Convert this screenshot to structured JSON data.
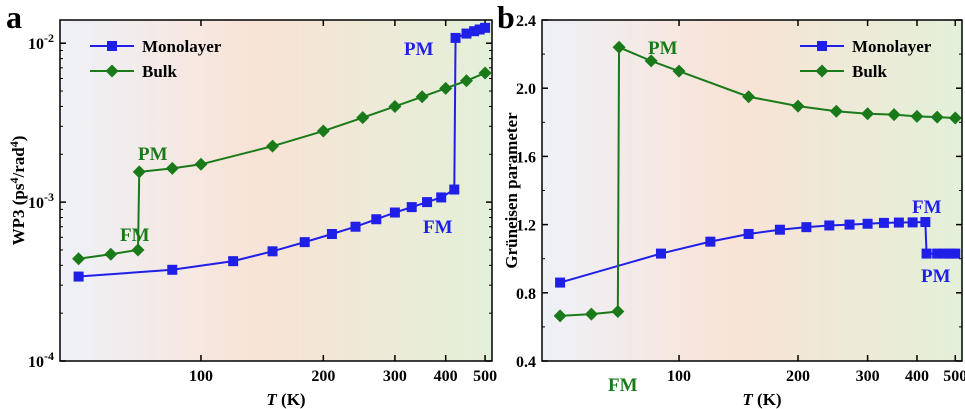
{
  "figure": {
    "panels": [
      {
        "letter": "a"
      },
      {
        "letter": "b"
      }
    ]
  },
  "chart_data": [
    {
      "type": "line",
      "panel": "a",
      "xlabel": "T (K)",
      "ylabel": "WP3 (ps4/rad4)",
      "xscale": "log",
      "yscale": "log",
      "xlim": [
        45,
        520
      ],
      "ylim": [
        0.0001,
        0.014
      ],
      "xticks": [
        100,
        200,
        300,
        400,
        500
      ],
      "xtick_labels": [
        "100",
        "200",
        "300",
        "400",
        "500"
      ],
      "yticks": [
        0.0001,
        0.001,
        0.01
      ],
      "ytick_labels": [
        "10-4",
        "10-3",
        "10-2"
      ],
      "legend_position": "top-left",
      "background_gradient": [
        "#eef1f8",
        "#f9e3d6",
        "#e3f0d9"
      ],
      "series": [
        {
          "name": "Monolayer",
          "color": "#1f1fe8",
          "marker": "square",
          "x": [
            50,
            85,
            120,
            150,
            180,
            210,
            240,
            270,
            300,
            330,
            360,
            390,
            420,
            423,
            450,
            470,
            485,
            500
          ],
          "y": [
            0.00034,
            0.000375,
            0.000425,
            0.00049,
            0.00056,
            0.00063,
            0.0007,
            0.00078,
            0.00086,
            0.00093,
            0.001,
            0.00107,
            0.0012,
            0.0108,
            0.0115,
            0.0119,
            0.0122,
            0.0125
          ]
        },
        {
          "name": "Bulk",
          "color": "#1a7a1a",
          "marker": "diamond",
          "x": [
            50,
            60,
            70,
            70.5,
            85,
            100,
            150,
            200,
            250,
            300,
            350,
            400,
            450,
            500
          ],
          "y": [
            0.00044,
            0.00047,
            0.0005,
            0.00155,
            0.00163,
            0.00173,
            0.00225,
            0.0028,
            0.0034,
            0.004,
            0.0046,
            0.0052,
            0.0058,
            0.0065
          ]
        }
      ],
      "annotations": [
        {
          "text": "PM",
          "color": "#1a7a1a"
        },
        {
          "text": "FM",
          "color": "#1a7a1a"
        },
        {
          "text": "PM",
          "color": "#1f1fe8"
        },
        {
          "text": "FM",
          "color": "#1f1fe8"
        }
      ]
    },
    {
      "type": "line",
      "panel": "b",
      "xlabel": "T (K)",
      "ylabel": "Grüneisen parameter",
      "xscale": "log",
      "yscale": "linear",
      "xlim": [
        45,
        520
      ],
      "ylim": [
        0.4,
        2.4
      ],
      "xticks": [
        100,
        200,
        300,
        400,
        500
      ],
      "xtick_labels": [
        "100",
        "200",
        "300",
        "400",
        "500"
      ],
      "yticks": [
        0.4,
        0.8,
        1.2,
        1.6,
        2.0,
        2.4
      ],
      "ytick_labels": [
        "0.4",
        "0.8",
        "1.2",
        "1.6",
        "2.0",
        "2.4"
      ],
      "legend_position": "top-right",
      "background_gradient": [
        "#eef1f8",
        "#f9e3d6",
        "#e3f0d9"
      ],
      "series": [
        {
          "name": "Monolayer",
          "color": "#1f1fe8",
          "marker": "square",
          "x": [
            50,
            90,
            120,
            150,
            180,
            210,
            240,
            270,
            300,
            330,
            360,
            390,
            420,
            423,
            450,
            470,
            485,
            500
          ],
          "y": [
            0.86,
            1.03,
            1.1,
            1.145,
            1.17,
            1.185,
            1.195,
            1.2,
            1.205,
            1.21,
            1.212,
            1.213,
            1.215,
            1.03,
            1.03,
            1.03,
            1.03,
            1.03
          ]
        },
        {
          "name": "Bulk",
          "color": "#1a7a1a",
          "marker": "diamond",
          "x": [
            50,
            60,
            70,
            70.5,
            85,
            100,
            150,
            200,
            250,
            300,
            350,
            400,
            450,
            500
          ],
          "y": [
            0.665,
            0.675,
            0.69,
            2.24,
            2.16,
            2.1,
            1.95,
            1.895,
            1.865,
            1.85,
            1.845,
            1.835,
            1.83,
            1.825
          ]
        }
      ],
      "annotations": [
        {
          "text": "PM",
          "color": "#1a7a1a"
        },
        {
          "text": "FM",
          "color": "#1a7a1a"
        },
        {
          "text": "FM",
          "color": "#1f1fe8"
        },
        {
          "text": "PM",
          "color": "#1f1fe8"
        }
      ]
    }
  ]
}
